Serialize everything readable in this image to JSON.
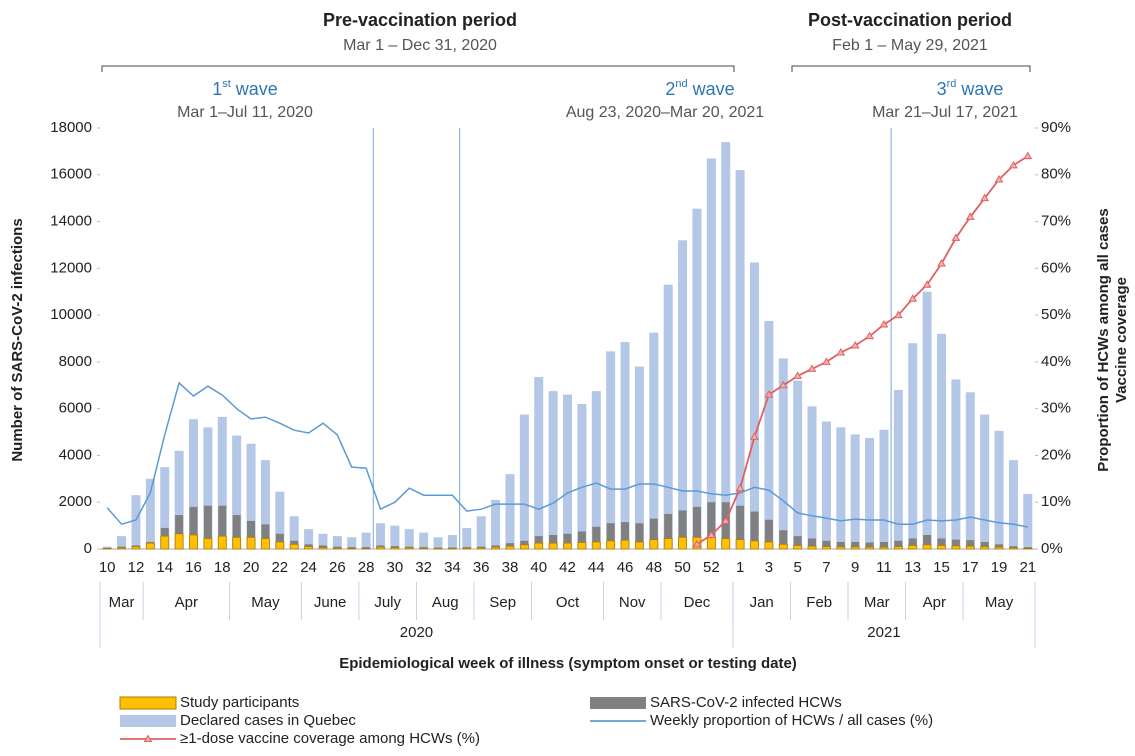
{
  "chart_data": {
    "type": "bar",
    "periods": [
      {
        "title": "Pre-vaccination period",
        "dates": "Mar 1 – Dec 31, 2020"
      },
      {
        "title": "Post-vaccination period",
        "dates": "Feb 1 – May 29, 2021"
      }
    ],
    "waves": [
      {
        "ordinal": "1",
        "suffix": "st",
        "word": "wave",
        "dates": "Mar 1–Jul 11, 2020"
      },
      {
        "ordinal": "2",
        "suffix": "nd",
        "word": "wave",
        "dates": "Aug 23, 2020–Mar 20, 2021"
      },
      {
        "ordinal": "3",
        "suffix": "rd",
        "word": "wave",
        "dates": "Mar 21–Jul 17, 2021"
      }
    ],
    "x_label": "Epidemiological week of illness (symptom onset or testing date)",
    "y_label": "Number of SARS-CoV-2 infections",
    "y2_label": [
      "Proportion of HCWs among all cases",
      "Vaccine coverage"
    ],
    "categories": [
      "10",
      null,
      "12",
      null,
      "14",
      null,
      "16",
      null,
      "18",
      null,
      "20",
      null,
      "22",
      null,
      "24",
      null,
      "26",
      null,
      "28",
      null,
      "30",
      null,
      "32",
      null,
      "34",
      null,
      "36",
      null,
      "38",
      null,
      "40",
      null,
      "42",
      null,
      "44",
      null,
      "46",
      null,
      "48",
      null,
      "50",
      null,
      "52",
      null,
      "1",
      null,
      "3",
      null,
      "5",
      null,
      "7",
      null,
      "9",
      null,
      "11",
      null,
      "13",
      null,
      "15",
      null,
      "17",
      null,
      "19",
      null,
      "21"
    ],
    "months": [
      "Mar",
      "Apr",
      "May",
      "June",
      "July",
      "Aug",
      "Sep",
      "Oct",
      "Nov",
      "Dec",
      "Jan",
      "Feb",
      "Mar",
      "Apr",
      "May"
    ],
    "years": [
      "2020",
      "2021"
    ],
    "ylim": [
      0,
      18000
    ],
    "yticks": [
      0,
      2000,
      4000,
      6000,
      8000,
      10000,
      12000,
      14000,
      16000,
      18000
    ],
    "y2lim": [
      0,
      90
    ],
    "y2ticks": [
      {
        "value": 0,
        "label": "0%"
      },
      {
        "value": 10,
        "label": "10%"
      },
      {
        "value": 20,
        "label": "20%"
      },
      {
        "value": 30,
        "label": "30%"
      },
      {
        "value": 40,
        "label": "40%"
      },
      {
        "value": 50,
        "label": "50%"
      },
      {
        "value": 60,
        "label": "60%"
      },
      {
        "value": 70,
        "label": "70%"
      },
      {
        "value": 80,
        "label": "80%"
      },
      {
        "value": 90,
        "label": "90%"
      }
    ],
    "series": [
      {
        "name": "Study participants",
        "type": "bar",
        "color": "#ffc000",
        "values": [
          20,
          50,
          100,
          250,
          550,
          650,
          600,
          450,
          550,
          500,
          500,
          450,
          300,
          200,
          100,
          60,
          40,
          30,
          30,
          80,
          60,
          50,
          40,
          30,
          30,
          40,
          50,
          80,
          120,
          180,
          250,
          250,
          250,
          280,
          300,
          350,
          380,
          300,
          400,
          450,
          500,
          500,
          500,
          450,
          400,
          350,
          300,
          200,
          150,
          120,
          100,
          90,
          90,
          80,
          80,
          100,
          150,
          180,
          150,
          130,
          120,
          100,
          80,
          50,
          30
        ]
      },
      {
        "name": "SARS-CoV-2 infected HCWs",
        "type": "bar",
        "color": "#808080",
        "values": [
          50,
          100,
          150,
          300,
          900,
          1450,
          1800,
          1850,
          1850,
          1450,
          1200,
          1050,
          650,
          350,
          200,
          150,
          100,
          80,
          80,
          150,
          120,
          100,
          80,
          60,
          60,
          80,
          100,
          150,
          250,
          350,
          550,
          600,
          650,
          750,
          950,
          1100,
          1150,
          1100,
          1300,
          1500,
          1650,
          1800,
          2000,
          2000,
          1850,
          1600,
          1250,
          800,
          550,
          450,
          350,
          300,
          300,
          280,
          300,
          350,
          450,
          600,
          450,
          400,
          380,
          300,
          200,
          120,
          80
        ]
      },
      {
        "name": "Declared cases in Quebec",
        "type": "bar",
        "color": "#b4c7e7",
        "values": [
          100,
          550,
          2300,
          3000,
          3500,
          4200,
          5550,
          5200,
          5650,
          4850,
          4500,
          3800,
          2450,
          1400,
          850,
          650,
          550,
          500,
          700,
          1100,
          1000,
          850,
          700,
          500,
          600,
          900,
          1400,
          2100,
          3200,
          5750,
          7350,
          6750,
          6600,
          6200,
          6750,
          8450,
          8850,
          7800,
          9250,
          11300,
          13200,
          14550,
          16700,
          17400,
          16200,
          12250,
          9750,
          8150,
          7200,
          6100,
          5450,
          5200,
          4900,
          4750,
          5100,
          6800,
          8800,
          11000,
          9200,
          7250,
          6700,
          5750,
          5050,
          3800,
          2350
        ]
      },
      {
        "name": "Weekly proportion of HCWs / all cases (%)",
        "type": "line",
        "axis": "y2",
        "color": "#5b9bd5",
        "values": [
          8.8,
          5.3,
          6.2,
          12,
          24.4,
          35.5,
          32.7,
          34.8,
          32.9,
          30,
          27.8,
          28.2,
          26.9,
          25.4,
          24.8,
          26.9,
          24.4,
          17.5,
          17.3,
          8.5,
          10,
          13,
          11.5,
          11.5,
          11.5,
          8.1,
          8.5,
          9.6,
          9.6,
          9.6,
          8.5,
          9.8,
          12,
          13.2,
          14.1,
          12.8,
          12.8,
          13.9,
          13.9,
          13.2,
          12.4,
          12.4,
          11.8,
          11.5,
          12,
          13.2,
          12.6,
          10.3,
          7.7,
          7.1,
          6.6,
          6,
          6.4,
          6.2,
          6.2,
          5.3,
          5.3,
          6.2,
          6,
          6.2,
          6.8,
          6.2,
          5.6,
          5.3,
          4.7
        ]
      },
      {
        "name": "≥1-dose vaccine coverage among HCWs (%)",
        "type": "line",
        "axis": "y2",
        "marker": "triangle",
        "color": "#e06060",
        "values": [
          null,
          null,
          null,
          null,
          null,
          null,
          null,
          null,
          null,
          null,
          null,
          null,
          null,
          null,
          null,
          null,
          null,
          null,
          null,
          null,
          null,
          null,
          null,
          null,
          null,
          null,
          null,
          null,
          null,
          null,
          null,
          null,
          null,
          null,
          null,
          null,
          null,
          null,
          null,
          null,
          null,
          1,
          3,
          6,
          13,
          24,
          33,
          35,
          37,
          38.5,
          40,
          42,
          43.5,
          45.5,
          48,
          50,
          53.5,
          56.5,
          61,
          66.5,
          71,
          75,
          79,
          82,
          84
        ]
      }
    ]
  }
}
